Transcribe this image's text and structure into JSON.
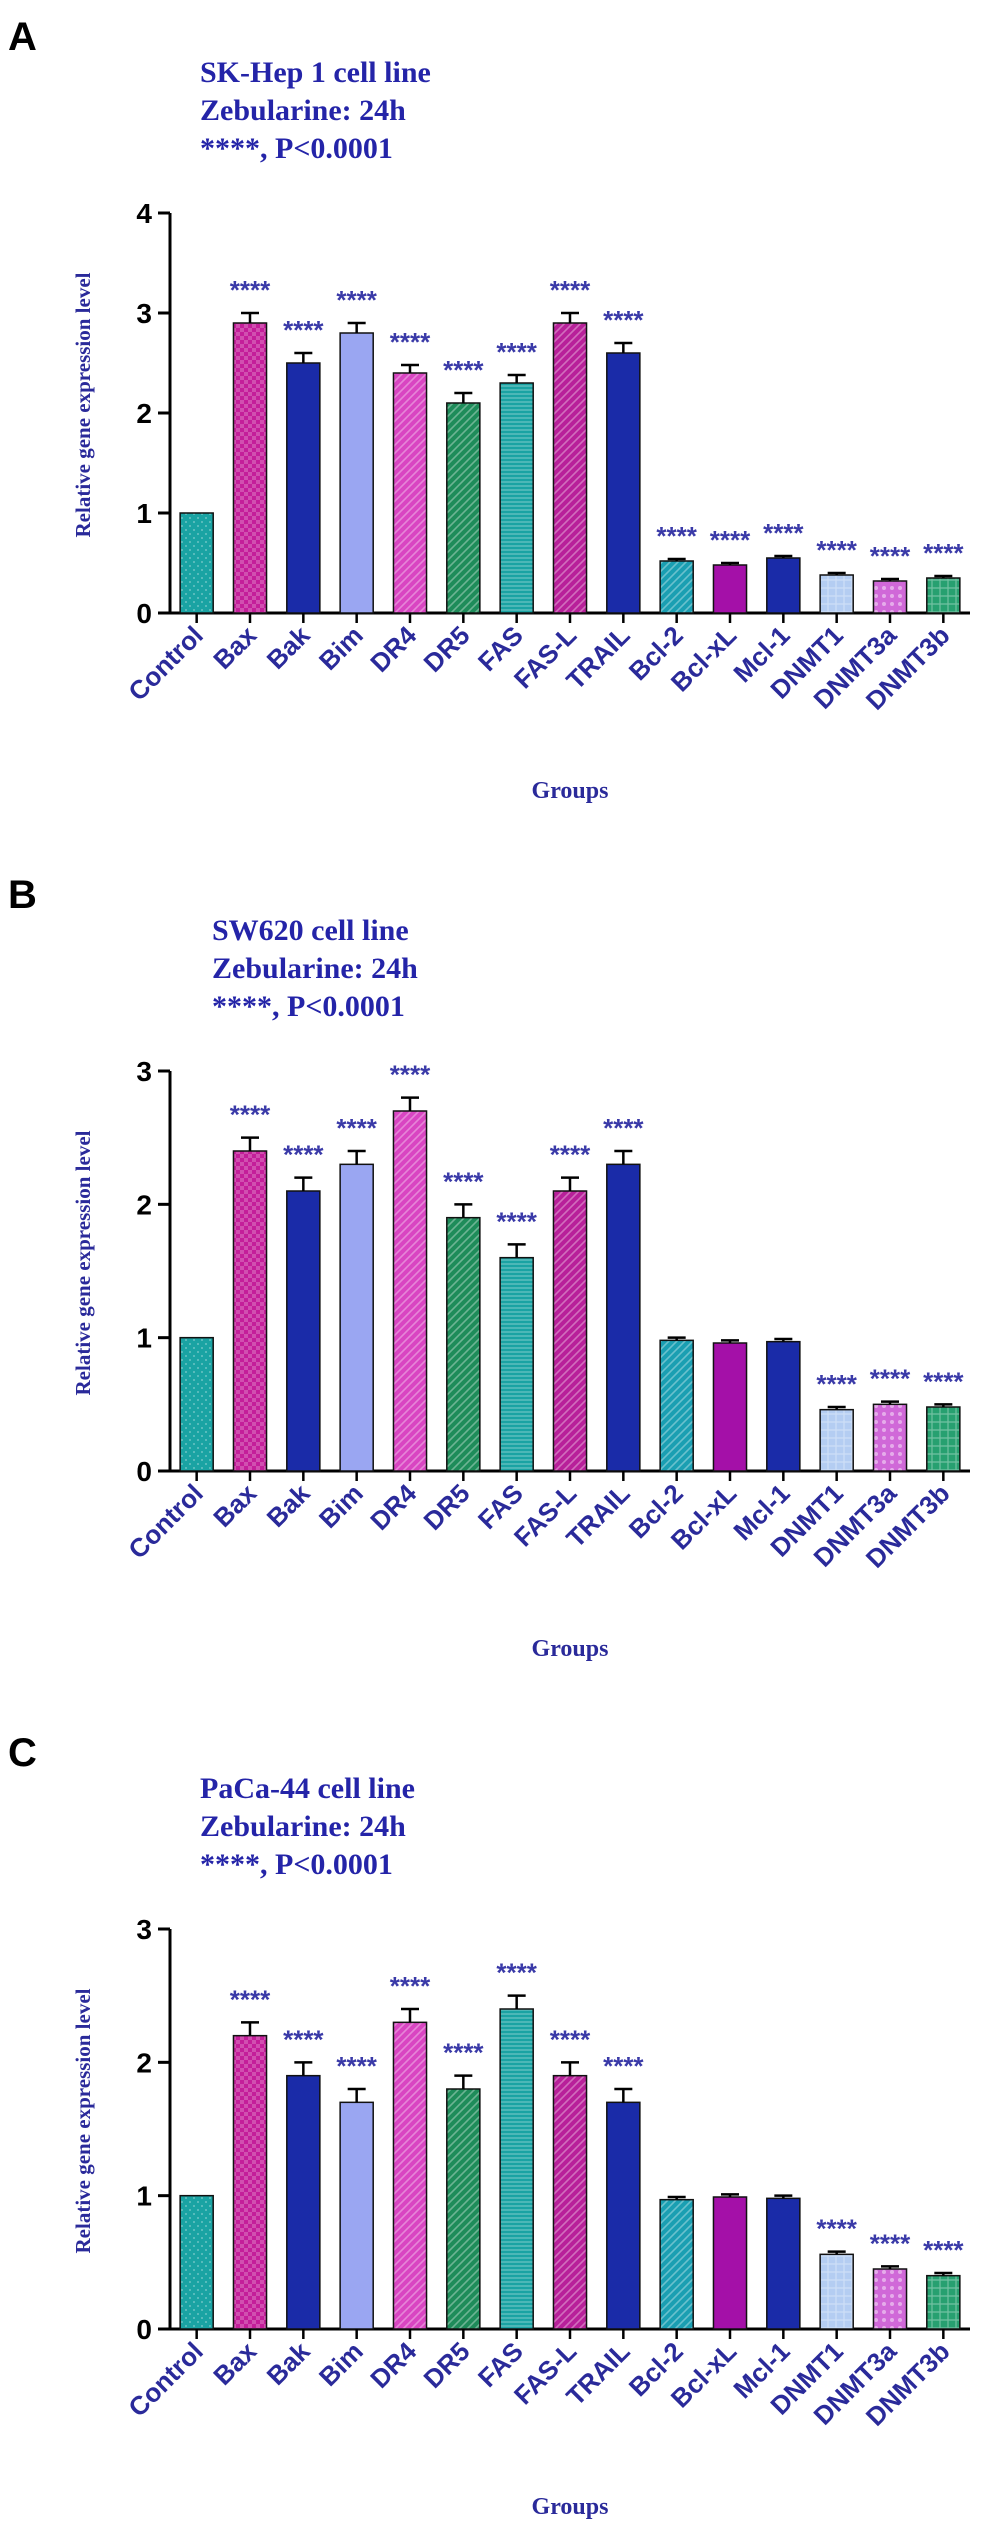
{
  "chart_data": [
    {
      "type": "bar",
      "panel_label": "A",
      "title_lines": [
        "SK-Hep 1 cell line",
        "Zebularine: 24h",
        "****, P<0.0001"
      ],
      "ylabel": "Relative gene expression level",
      "xlabel": "Groups",
      "ylim": [
        0,
        4
      ],
      "yticks": [
        "0",
        "1",
        "2",
        "3",
        "4"
      ],
      "categories": [
        "Control",
        "Bax",
        "Bak",
        "Bim",
        "DR4",
        "DR5",
        "FAS",
        "FAS-L",
        "TRAIL",
        "Bcl-2",
        "Bcl-xL",
        "Mcl-1",
        "DNMT1",
        "DNMT3a",
        "DNMT3b"
      ],
      "values": [
        1.0,
        2.9,
        2.5,
        2.8,
        2.4,
        2.1,
        2.3,
        2.9,
        2.6,
        0.52,
        0.48,
        0.55,
        0.38,
        0.32,
        0.35
      ],
      "errors": [
        0,
        0.1,
        0.1,
        0.1,
        0.08,
        0.1,
        0.08,
        0.1,
        0.1,
        0.02,
        0.02,
        0.02,
        0.02,
        0.02,
        0.02
      ],
      "significance": [
        "",
        "****",
        "****",
        "****",
        "****",
        "****",
        "****",
        "****",
        "****",
        "****",
        "****",
        "****",
        "****",
        "****",
        "****"
      ],
      "grid": false,
      "legend": "none"
    },
    {
      "type": "bar",
      "panel_label": "B",
      "title_lines": [
        "SW620 cell line",
        "Zebularine: 24h",
        "****, P<0.0001"
      ],
      "ylabel": "Relative gene expression level",
      "xlabel": "Groups",
      "ylim": [
        0,
        3
      ],
      "yticks": [
        "0",
        "1",
        "2",
        "3"
      ],
      "categories": [
        "Control",
        "Bax",
        "Bak",
        "Bim",
        "DR4",
        "DR5",
        "FAS",
        "FAS-L",
        "TRAIL",
        "Bcl-2",
        "Bcl-xL",
        "Mcl-1",
        "DNMT1",
        "DNMT3a",
        "DNMT3b"
      ],
      "values": [
        1.0,
        2.4,
        2.1,
        2.3,
        2.7,
        1.9,
        1.6,
        2.1,
        2.3,
        0.98,
        0.96,
        0.97,
        0.46,
        0.5,
        0.48
      ],
      "errors": [
        0,
        0.1,
        0.1,
        0.1,
        0.1,
        0.1,
        0.1,
        0.1,
        0.1,
        0.02,
        0.02,
        0.02,
        0.02,
        0.02,
        0.02
      ],
      "significance": [
        "",
        "****",
        "****",
        "****",
        "****",
        "****",
        "****",
        "****",
        "****",
        "",
        "",
        "",
        "****",
        "****",
        "****"
      ],
      "grid": false,
      "legend": "none"
    },
    {
      "type": "bar",
      "panel_label": "C",
      "title_lines": [
        "PaCa-44 cell line",
        "Zebularine: 24h",
        "****, P<0.0001"
      ],
      "ylabel": "Relative gene expression level",
      "xlabel": "Groups",
      "ylim": [
        0,
        3
      ],
      "yticks": [
        "0",
        "1",
        "2",
        "3"
      ],
      "categories": [
        "Control",
        "Bax",
        "Bak",
        "Bim",
        "DR4",
        "DR5",
        "FAS",
        "FAS-L",
        "TRAIL",
        "Bcl-2",
        "Bcl-xL",
        "Mcl-1",
        "DNMT1",
        "DNMT3a",
        "DNMT3b"
      ],
      "values": [
        1.0,
        2.2,
        1.9,
        1.7,
        2.3,
        1.8,
        2.4,
        1.9,
        1.7,
        0.97,
        0.99,
        0.98,
        0.56,
        0.45,
        0.4
      ],
      "errors": [
        0,
        0.1,
        0.1,
        0.1,
        0.1,
        0.1,
        0.1,
        0.1,
        0.1,
        0.02,
        0.02,
        0.02,
        0.02,
        0.02,
        0.02
      ],
      "significance": [
        "",
        "****",
        "****",
        "****",
        "****",
        "****",
        "****",
        "****",
        "****",
        "",
        "",
        "",
        "****",
        "****",
        "****"
      ],
      "grid": false,
      "legend": "none"
    }
  ],
  "colors": {
    "title_text": "#2424a8",
    "axis_label_text": "#2a2a9a",
    "significance_text": "#3a3aa8",
    "bar_fills": [
      "#1aa3a3",
      "#c41e9a",
      "#1a2ba8",
      "#9aa6f2",
      "#d945c2",
      "#1e8c5a",
      "#1aa3a3",
      "#b8209a",
      "#1a2ba8",
      "#1a9fb2",
      "#a410a8",
      "#1a2ba8",
      "#b4cdf2",
      "#d068d8",
      "#27a070"
    ]
  }
}
